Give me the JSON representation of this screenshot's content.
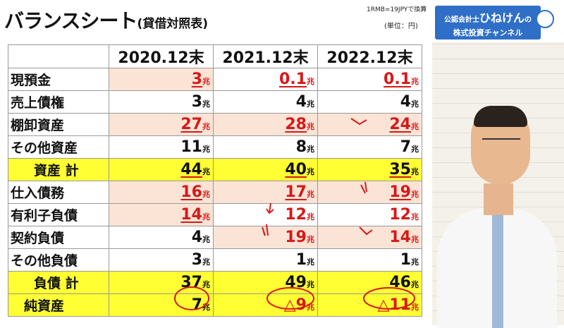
{
  "title": {
    "main": "バランスシート",
    "sub": "(貸借対照表)"
  },
  "note": {
    "rate": "1RMB=19JPYで換算",
    "unit": "(単位：円)"
  },
  "unit_suffix": "兆",
  "table": {
    "headers": [
      "2020.12末",
      "2021.12末",
      "2022.12末"
    ],
    "rows": [
      {
        "label": "現預金",
        "values": [
          "3",
          "0.1",
          "0.1"
        ]
      },
      {
        "label": "売上債権",
        "values": [
          "3",
          "4",
          "4"
        ]
      },
      {
        "label": "棚卸資産",
        "values": [
          "27",
          "28",
          "24"
        ]
      },
      {
        "label": "その他資産",
        "values": [
          "11",
          "8",
          "7"
        ]
      },
      {
        "label": "資産 計",
        "values": [
          "44",
          "40",
          "35"
        ]
      },
      {
        "label": "仕入債務",
        "values": [
          "16",
          "17",
          "19"
        ]
      },
      {
        "label": "有利子負債",
        "values": [
          "14",
          "12",
          "12"
        ]
      },
      {
        "label": "契約負債",
        "values": [
          "4",
          "19",
          "14"
        ]
      },
      {
        "label": "その他負債",
        "values": [
          "3",
          "1",
          "1"
        ]
      },
      {
        "label": "負債 計",
        "values": [
          "37",
          "49",
          "46"
        ]
      },
      {
        "label": "純資産",
        "values": [
          "7",
          "△9",
          "△11"
        ]
      }
    ]
  },
  "channel": {
    "line1_prefix": "公認会計士",
    "line1_name": "ひねけん",
    "line1_suffix": "の",
    "line2": "株式投資チャンネル"
  },
  "colors": {
    "highlight_yellow": "#ffff33",
    "highlight_pink": "#fbe4d6",
    "red": "#d81818",
    "channel_blue": "#2f6fc7"
  }
}
